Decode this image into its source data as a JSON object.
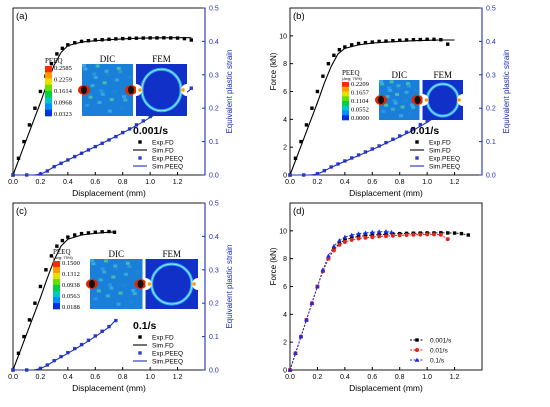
{
  "figure": {
    "colors": {
      "exp": "#000000",
      "sim_peeq": "#1f2fb4",
      "exp_peeq": "#2a3fd0",
      "red": "#e8231c",
      "blue": "#1a2ae0"
    }
  },
  "chart_data": [
    {
      "type": "line",
      "panel_label": "(a)",
      "rate_label": "0.001/s",
      "xlabel": "Displacement (mm)",
      "ylabel": "",
      "y2label": "Equivalent plastic strain",
      "xlim": [
        0.0,
        1.4
      ],
      "ylim": [
        0,
        12
      ],
      "y2lim": [
        0.0,
        0.5
      ],
      "xticks": [
        "0.0",
        "0.2",
        "0.4",
        "0.6",
        "0.8",
        "1.0",
        "1.2"
      ],
      "yticks": [],
      "y2ticks": [
        "0.0",
        "0.1",
        "0.2",
        "0.3",
        "0.4",
        "0.5"
      ],
      "inset": {
        "title": "PEEQ",
        "values": [
          "0.2585",
          "0.2259",
          "0.1614",
          "0.0968",
          "0.0323"
        ],
        "labels": [
          "DIC",
          "FEM"
        ]
      },
      "series": [
        {
          "name": "Exp.FD",
          "axis": "left",
          "style": "square-dot",
          "x": [
            0,
            0.04,
            0.08,
            0.12,
            0.16,
            0.2,
            0.24,
            0.28,
            0.32,
            0.36,
            0.4,
            0.45,
            0.5,
            0.55,
            0.6,
            0.65,
            0.7,
            0.75,
            0.8,
            0.85,
            0.9,
            0.95,
            1.0,
            1.05,
            1.1,
            1.15,
            1.2,
            1.25,
            1.3
          ],
          "y": [
            0.0,
            1.2,
            2.4,
            3.6,
            4.8,
            6.0,
            7.1,
            8.0,
            8.7,
            9.1,
            9.35,
            9.5,
            9.6,
            9.65,
            9.7,
            9.72,
            9.75,
            9.78,
            9.8,
            9.82,
            9.83,
            9.84,
            9.85,
            9.85,
            9.86,
            9.85,
            9.84,
            9.8,
            9.7
          ]
        },
        {
          "name": "Sim.FD",
          "axis": "left",
          "style": "solid",
          "x": [
            0,
            0.05,
            0.1,
            0.15,
            0.2,
            0.25,
            0.3,
            0.35,
            0.4,
            0.5,
            0.6,
            0.7,
            0.8,
            0.9,
            1.0,
            1.1,
            1.2,
            1.3
          ],
          "y": [
            0.0,
            1.3,
            2.6,
            3.9,
            5.2,
            6.6,
            7.9,
            8.8,
            9.3,
            9.55,
            9.65,
            9.72,
            9.78,
            9.82,
            9.85,
            9.86,
            9.87,
            9.87
          ]
        },
        {
          "name": "Exp.PEEQ",
          "axis": "right",
          "style": "square-dot",
          "x": [
            0.0,
            0.1,
            0.2,
            0.25,
            0.3,
            0.35,
            0.4,
            0.45,
            0.5,
            0.55,
            0.6,
            0.65,
            0.7,
            0.75,
            0.8,
            0.85,
            0.9,
            0.95,
            1.0,
            1.05,
            1.1,
            1.15,
            1.2,
            1.25,
            1.3
          ],
          "y": [
            0.0,
            0.0,
            0.003,
            0.012,
            0.025,
            0.035,
            0.045,
            0.055,
            0.065,
            0.075,
            0.085,
            0.095,
            0.105,
            0.115,
            0.127,
            0.138,
            0.15,
            0.162,
            0.175,
            0.188,
            0.2,
            0.213,
            0.228,
            0.243,
            0.26
          ]
        },
        {
          "name": "Sim.PEEQ",
          "axis": "right",
          "style": "solid",
          "x": [
            0.0,
            0.15,
            0.2,
            0.25,
            0.3,
            0.4,
            0.5,
            0.6,
            0.7,
            0.8,
            0.9,
            1.0,
            1.1,
            1.2,
            1.3
          ],
          "y": [
            0.0,
            0.0,
            0.002,
            0.012,
            0.025,
            0.045,
            0.065,
            0.085,
            0.105,
            0.126,
            0.148,
            0.172,
            0.198,
            0.226,
            0.258
          ]
        }
      ]
    },
    {
      "type": "line",
      "panel_label": "(b)",
      "rate_label": "0.01/s",
      "xlabel": "Displacement (mm)",
      "ylabel": "Force (kN)",
      "y2label": "Equivalent plastic strain",
      "xlim": [
        0.0,
        1.4
      ],
      "ylim": [
        0,
        12
      ],
      "y2lim": [
        0.0,
        0.5
      ],
      "xticks": [
        "0.0",
        "0.2",
        "0.4",
        "0.6",
        "0.8",
        "1.0",
        "1.2"
      ],
      "yticks": [
        "0",
        "2",
        "4",
        "6",
        "8",
        "10"
      ],
      "y2ticks": [
        "0.0",
        "0.1",
        "0.2",
        "0.3",
        "0.4",
        "0.5"
      ],
      "inset": {
        "title": "PEEQ",
        "subtitle": "(Avg: 75%)",
        "values": [
          "0.2209",
          "0.1657",
          "0.1104",
          "0.0552",
          "0.0000"
        ],
        "labels": [
          "DIC",
          "FEM"
        ]
      },
      "series": [
        {
          "name": "Exp.FD",
          "axis": "left",
          "style": "square-dot",
          "x": [
            0,
            0.04,
            0.08,
            0.12,
            0.16,
            0.2,
            0.24,
            0.28,
            0.32,
            0.36,
            0.4,
            0.45,
            0.5,
            0.55,
            0.6,
            0.65,
            0.7,
            0.75,
            0.8,
            0.85,
            0.9,
            0.95,
            1.0,
            1.05,
            1.1,
            1.15
          ],
          "y": [
            0.0,
            1.2,
            2.4,
            3.6,
            4.8,
            6.0,
            7.1,
            8.0,
            8.6,
            9.0,
            9.2,
            9.35,
            9.45,
            9.5,
            9.55,
            9.6,
            9.62,
            9.65,
            9.68,
            9.7,
            9.72,
            9.73,
            9.75,
            9.75,
            9.72,
            9.4
          ]
        },
        {
          "name": "Sim.FD",
          "axis": "left",
          "style": "solid",
          "x": [
            0,
            0.05,
            0.1,
            0.15,
            0.2,
            0.25,
            0.3,
            0.35,
            0.4,
            0.5,
            0.6,
            0.7,
            0.8,
            0.9,
            1.0,
            1.1,
            1.2
          ],
          "y": [
            0.0,
            1.3,
            2.6,
            3.9,
            5.2,
            6.6,
            7.8,
            8.7,
            9.1,
            9.35,
            9.48,
            9.55,
            9.6,
            9.65,
            9.68,
            9.7,
            9.7
          ]
        },
        {
          "name": "Exp.PEEQ",
          "axis": "right",
          "style": "square-dot",
          "x": [
            0.0,
            0.1,
            0.2,
            0.25,
            0.3,
            0.35,
            0.4,
            0.45,
            0.5,
            0.55,
            0.6,
            0.65,
            0.7,
            0.75,
            0.8,
            0.85,
            0.9,
            0.95,
            1.0,
            1.05,
            1.1,
            1.15
          ],
          "y": [
            0.0,
            0.0,
            0.004,
            0.013,
            0.024,
            0.033,
            0.042,
            0.051,
            0.06,
            0.069,
            0.078,
            0.087,
            0.097,
            0.107,
            0.117,
            0.128,
            0.139,
            0.151,
            0.163,
            0.176,
            0.19,
            0.205
          ]
        },
        {
          "name": "Sim.PEEQ",
          "axis": "right",
          "style": "solid",
          "x": [
            0.0,
            0.15,
            0.2,
            0.25,
            0.3,
            0.4,
            0.5,
            0.6,
            0.7,
            0.8,
            0.9,
            1.0,
            1.1,
            1.2
          ],
          "y": [
            0.0,
            0.0,
            0.003,
            0.012,
            0.023,
            0.041,
            0.058,
            0.076,
            0.095,
            0.114,
            0.134,
            0.158,
            0.186,
            0.22
          ]
        }
      ]
    },
    {
      "type": "line",
      "panel_label": "(c)",
      "rate_label": "0.1/s",
      "xlabel": "Displacement (mm)",
      "ylabel": "",
      "y2label": "Equivalent plastic strain",
      "xlim": [
        0.0,
        1.4
      ],
      "ylim": [
        0,
        12
      ],
      "y2lim": [
        0.0,
        0.5
      ],
      "xticks": [
        "0.0",
        "0.2",
        "0.4",
        "0.6",
        "0.8",
        "1.0",
        "1.2"
      ],
      "yticks": [],
      "y2ticks": [
        "0.0",
        "0.1",
        "0.2",
        "0.3",
        "0.4",
        "0.5"
      ],
      "inset": {
        "title": "PEEQ",
        "subtitle": "(Avg: 75%)",
        "values": [
          "0.1500",
          "0.1312",
          "0.0938",
          "0.0563",
          "0.0188"
        ],
        "labels": [
          "DIC",
          "FEM"
        ]
      },
      "series": [
        {
          "name": "Exp.FD",
          "axis": "left",
          "style": "square-dot",
          "x": [
            0,
            0.04,
            0.08,
            0.12,
            0.16,
            0.2,
            0.24,
            0.28,
            0.32,
            0.36,
            0.4,
            0.45,
            0.5,
            0.55,
            0.6,
            0.65,
            0.7,
            0.74
          ],
          "y": [
            0.0,
            1.2,
            2.4,
            3.6,
            4.8,
            6.0,
            7.2,
            8.2,
            8.9,
            9.3,
            9.55,
            9.7,
            9.8,
            9.85,
            9.9,
            9.93,
            9.95,
            9.9
          ]
        },
        {
          "name": "Sim.FD",
          "axis": "left",
          "style": "solid",
          "x": [
            0,
            0.05,
            0.1,
            0.15,
            0.2,
            0.25,
            0.3,
            0.35,
            0.4,
            0.5,
            0.6,
            0.7,
            0.75
          ],
          "y": [
            0.0,
            1.3,
            2.6,
            3.9,
            5.2,
            6.6,
            7.9,
            8.9,
            9.4,
            9.7,
            9.82,
            9.9,
            9.92
          ]
        },
        {
          "name": "Exp.PEEQ",
          "axis": "right",
          "style": "square-dot",
          "x": [
            0.0,
            0.1,
            0.2,
            0.25,
            0.3,
            0.35,
            0.4,
            0.45,
            0.5,
            0.55,
            0.6,
            0.65,
            0.7,
            0.75
          ],
          "y": [
            0.0,
            0.0,
            0.005,
            0.015,
            0.028,
            0.04,
            0.052,
            0.064,
            0.076,
            0.089,
            0.102,
            0.116,
            0.13,
            0.148
          ]
        },
        {
          "name": "Sim.PEEQ",
          "axis": "right",
          "style": "solid",
          "x": [
            0.0,
            0.15,
            0.2,
            0.25,
            0.3,
            0.4,
            0.5,
            0.6,
            0.7,
            0.75
          ],
          "y": [
            0.0,
            0.0,
            0.004,
            0.014,
            0.027,
            0.05,
            0.074,
            0.1,
            0.128,
            0.15
          ]
        }
      ]
    },
    {
      "type": "line",
      "panel_label": "(d)",
      "xlabel": "Displacement (mm)",
      "ylabel": "Force (kN)",
      "xlim": [
        0.0,
        1.4
      ],
      "ylim": [
        0,
        12
      ],
      "xticks": [
        "0.0",
        "0.2",
        "0.4",
        "0.6",
        "0.8",
        "1.0",
        "1.2"
      ],
      "yticks": [
        "0",
        "2",
        "4",
        "6",
        "8",
        "10"
      ],
      "series": [
        {
          "name": "0.001/s",
          "color": "#000000",
          "marker": "square",
          "x": [
            0,
            0.04,
            0.08,
            0.12,
            0.16,
            0.2,
            0.24,
            0.28,
            0.32,
            0.36,
            0.4,
            0.45,
            0.5,
            0.55,
            0.6,
            0.65,
            0.7,
            0.75,
            0.8,
            0.85,
            0.9,
            0.95,
            1.0,
            1.05,
            1.1,
            1.15,
            1.2,
            1.25,
            1.3
          ],
          "y": [
            0.0,
            1.2,
            2.4,
            3.6,
            4.8,
            6.0,
            7.1,
            8.0,
            8.7,
            9.1,
            9.35,
            9.5,
            9.6,
            9.65,
            9.7,
            9.72,
            9.75,
            9.78,
            9.8,
            9.82,
            9.83,
            9.84,
            9.85,
            9.85,
            9.86,
            9.85,
            9.84,
            9.8,
            9.7
          ]
        },
        {
          "name": "0.01/s",
          "color": "#e8231c",
          "marker": "circle",
          "x": [
            0,
            0.04,
            0.08,
            0.12,
            0.16,
            0.2,
            0.24,
            0.28,
            0.32,
            0.36,
            0.4,
            0.45,
            0.5,
            0.55,
            0.6,
            0.65,
            0.7,
            0.75,
            0.8,
            0.85,
            0.9,
            0.95,
            1.0,
            1.05,
            1.1,
            1.15
          ],
          "y": [
            0.0,
            1.2,
            2.4,
            3.6,
            4.8,
            6.0,
            7.1,
            8.0,
            8.6,
            9.0,
            9.2,
            9.35,
            9.45,
            9.5,
            9.55,
            9.6,
            9.62,
            9.65,
            9.68,
            9.7,
            9.72,
            9.73,
            9.75,
            9.75,
            9.72,
            9.4
          ]
        },
        {
          "name": "0.1/s",
          "color": "#1a2ae0",
          "marker": "triangle",
          "x": [
            0,
            0.04,
            0.08,
            0.12,
            0.16,
            0.2,
            0.24,
            0.28,
            0.32,
            0.36,
            0.4,
            0.45,
            0.5,
            0.55,
            0.6,
            0.65,
            0.7,
            0.74
          ],
          "y": [
            0.0,
            1.2,
            2.4,
            3.6,
            4.8,
            6.0,
            7.2,
            8.2,
            8.9,
            9.3,
            9.55,
            9.7,
            9.8,
            9.85,
            9.9,
            9.93,
            9.95,
            9.9
          ]
        }
      ]
    }
  ]
}
